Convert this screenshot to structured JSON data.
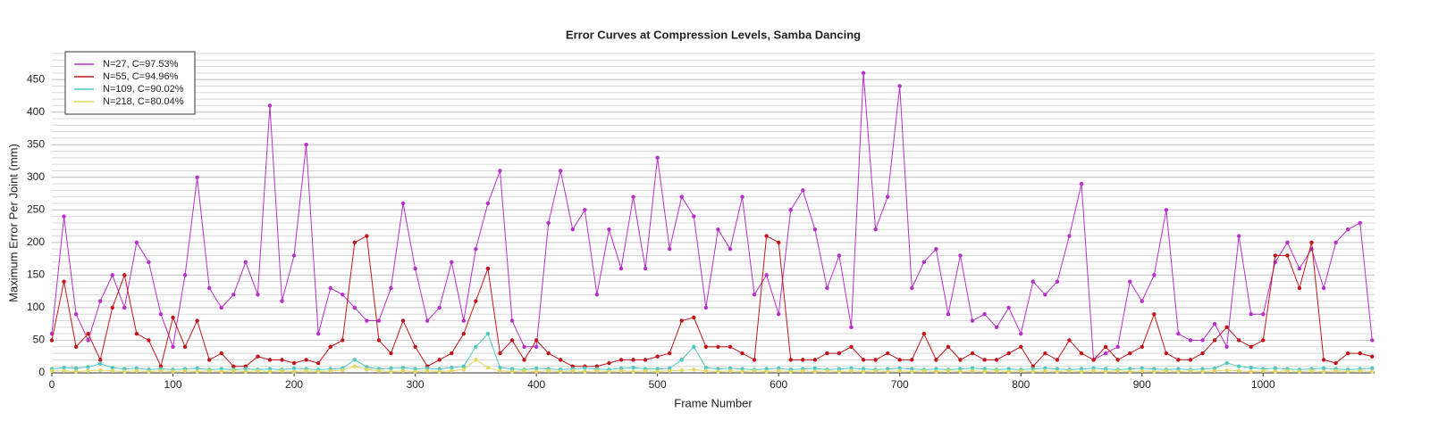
{
  "chart_data": {
    "type": "line",
    "title": "Error Curves at Compression Levels, Samba Dancing",
    "x_label": "Frame Number",
    "y_label": "Maximum Error Per Joint (mm)",
    "xlim": [
      0,
      1092
    ],
    "ylim": [
      0,
      494
    ],
    "xticks": [
      0,
      100,
      200,
      300,
      400,
      500,
      600,
      700,
      800,
      900,
      1000
    ],
    "yticks": [
      0,
      50,
      100,
      150,
      200,
      250,
      300,
      350,
      400,
      450
    ],
    "grid": true,
    "minor_grid_step": 10,
    "legend": "upper left",
    "x": [
      0,
      10,
      20,
      30,
      40,
      50,
      60,
      70,
      80,
      90,
      100,
      110,
      120,
      130,
      140,
      150,
      160,
      170,
      180,
      190,
      200,
      210,
      220,
      230,
      240,
      250,
      260,
      270,
      280,
      290,
      300,
      310,
      320,
      330,
      340,
      350,
      360,
      370,
      380,
      390,
      400,
      410,
      420,
      430,
      440,
      450,
      460,
      470,
      480,
      490,
      500,
      510,
      520,
      530,
      540,
      550,
      560,
      570,
      580,
      590,
      600,
      610,
      620,
      630,
      640,
      650,
      660,
      670,
      680,
      690,
      700,
      710,
      720,
      730,
      740,
      750,
      760,
      770,
      780,
      790,
      800,
      810,
      820,
      830,
      840,
      850,
      860,
      870,
      880,
      890,
      900,
      910,
      920,
      930,
      940,
      950,
      960,
      970,
      980,
      990,
      1000,
      1010,
      1020,
      1030,
      1040,
      1050,
      1060,
      1070,
      1080,
      1090
    ],
    "series": [
      {
        "name": "N=27, C=97.53%",
        "color": "#b52fc8",
        "values": [
          60,
          240,
          90,
          50,
          110,
          150,
          100,
          200,
          170,
          90,
          40,
          150,
          300,
          130,
          100,
          120,
          170,
          120,
          410,
          110,
          180,
          350,
          60,
          130,
          120,
          100,
          80,
          80,
          130,
          260,
          160,
          80,
          100,
          170,
          80,
          190,
          260,
          310,
          80,
          40,
          40,
          230,
          310,
          220,
          250,
          120,
          220,
          160,
          270,
          160,
          330,
          190,
          270,
          240,
          100,
          220,
          190,
          270,
          120,
          150,
          90,
          250,
          280,
          220,
          130,
          180,
          70,
          460,
          220,
          270,
          440,
          130,
          170,
          190,
          90,
          180,
          80,
          90,
          70,
          100,
          60,
          140,
          120,
          140,
          210,
          290,
          20,
          30,
          40,
          140,
          110,
          150,
          250,
          60,
          50,
          50,
          75,
          40,
          210,
          90,
          90,
          170,
          200,
          160,
          190,
          130,
          200,
          220,
          230,
          50
        ]
      },
      {
        "name": "N=55, C=94.96%",
        "color": "#c0161b",
        "values": [
          50,
          140,
          40,
          60,
          20,
          100,
          150,
          60,
          50,
          10,
          85,
          40,
          80,
          20,
          30,
          10,
          10,
          25,
          20,
          20,
          15,
          20,
          15,
          40,
          50,
          200,
          210,
          50,
          30,
          80,
          40,
          10,
          20,
          30,
          60,
          110,
          160,
          30,
          50,
          20,
          50,
          30,
          20,
          10,
          10,
          10,
          15,
          20,
          20,
          20,
          25,
          30,
          80,
          85,
          40,
          40,
          40,
          30,
          20,
          210,
          200,
          20,
          20,
          20,
          30,
          30,
          40,
          20,
          20,
          30,
          20,
          20,
          60,
          20,
          40,
          20,
          30,
          20,
          20,
          30,
          40,
          10,
          30,
          20,
          50,
          30,
          20,
          40,
          20,
          30,
          40,
          90,
          30,
          20,
          20,
          30,
          50,
          70,
          50,
          40,
          50,
          180,
          180,
          130,
          200,
          20,
          15,
          30,
          30,
          25
        ]
      },
      {
        "name": "N=109, C=90.02%",
        "color": "#4fc8c0",
        "values": [
          6,
          8,
          7,
          9,
          14,
          8,
          6,
          7,
          5,
          6,
          5,
          6,
          7,
          5,
          6,
          5,
          6,
          5,
          6,
          5,
          7,
          6,
          5,
          6,
          7,
          20,
          9,
          6,
          7,
          8,
          6,
          7,
          6,
          8,
          10,
          40,
          60,
          8,
          6,
          5,
          7,
          6,
          5,
          6,
          7,
          6,
          5,
          7,
          8,
          6,
          6,
          7,
          20,
          40,
          8,
          6,
          7,
          6,
          5,
          6,
          7,
          5,
          6,
          7,
          5,
          6,
          7,
          6,
          5,
          6,
          7,
          6,
          5,
          6,
          5,
          6,
          7,
          6,
          5,
          6,
          5,
          6,
          7,
          6,
          5,
          6,
          7,
          6,
          5,
          6,
          7,
          6,
          5,
          6,
          5,
          6,
          7,
          15,
          10,
          8,
          6,
          7,
          6,
          5,
          6,
          7,
          6,
          5,
          6,
          7
        ]
      },
      {
        "name": "N=218, C=80.04%",
        "color": "#e0d860",
        "values": [
          3,
          3,
          2,
          3,
          4,
          3,
          2,
          3,
          2,
          3,
          2,
          3,
          2,
          3,
          2,
          3,
          2,
          3,
          2,
          3,
          2,
          3,
          2,
          3,
          4,
          10,
          5,
          3,
          2,
          3,
          2,
          3,
          2,
          3,
          5,
          20,
          8,
          3,
          2,
          3,
          2,
          3,
          2,
          3,
          2,
          3,
          2,
          3,
          2,
          3,
          2,
          3,
          4,
          5,
          3,
          2,
          3,
          2,
          3,
          2,
          3,
          2,
          3,
          2,
          3,
          2,
          3,
          2,
          3,
          2,
          3,
          2,
          3,
          2,
          3,
          2,
          3,
          2,
          3,
          2,
          3,
          2,
          3,
          2,
          3,
          2,
          3,
          2,
          3,
          2,
          3,
          2,
          3,
          2,
          3,
          2,
          3,
          4,
          3,
          2,
          3,
          2,
          3,
          2,
          3,
          2,
          3,
          2,
          3,
          2
        ]
      }
    ]
  }
}
